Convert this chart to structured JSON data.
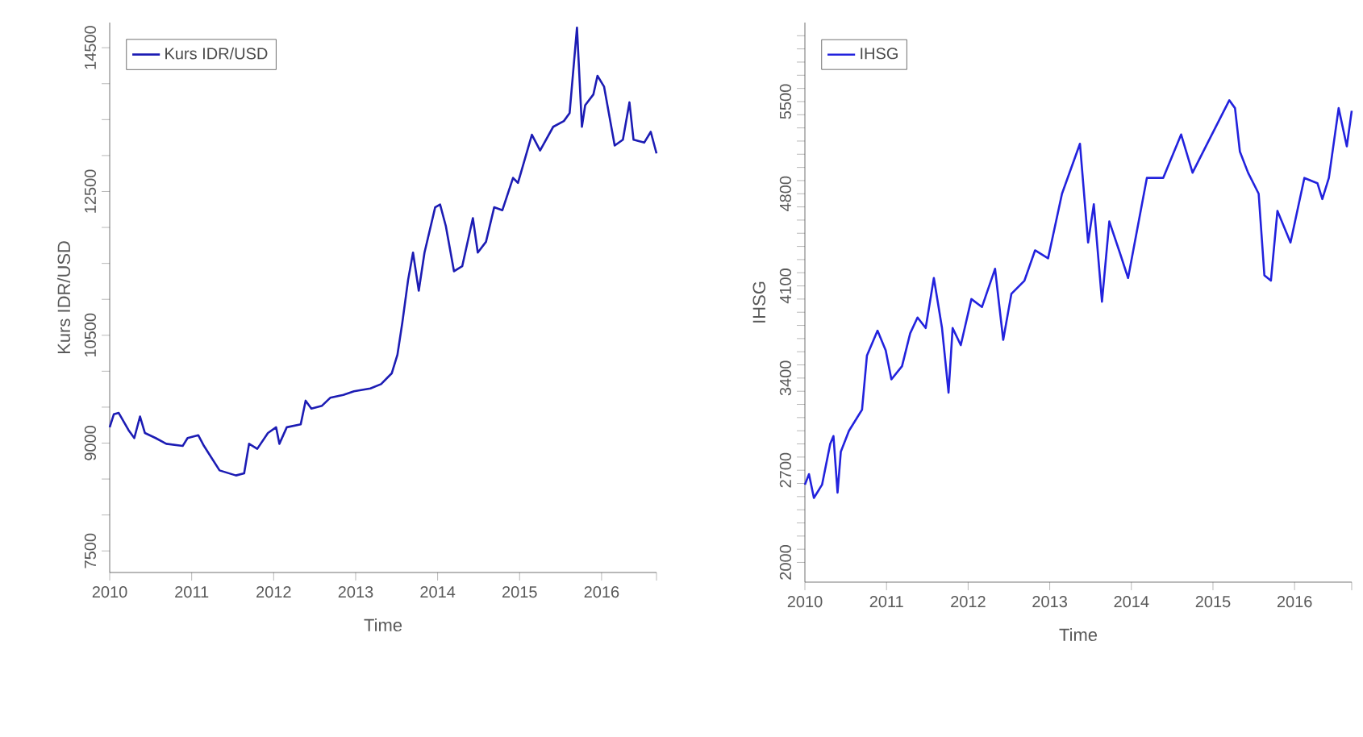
{
  "chart_data": [
    {
      "type": "line",
      "xlabel": "Time",
      "ylabel": "Kurs IDR/USD",
      "legend": "top left",
      "x": [
        2010.0,
        2010.05,
        2010.11,
        2010.23,
        2010.3,
        2010.37,
        2010.43,
        2010.56,
        2010.69,
        2010.89,
        2010.95,
        2011.08,
        2011.15,
        2011.34,
        2011.54,
        2011.64,
        2011.7,
        2011.8,
        2011.93,
        2012.03,
        2012.07,
        2012.16,
        2012.33,
        2012.39,
        2012.46,
        2012.59,
        2012.69,
        2012.85,
        2012.98,
        2013.18,
        2013.31,
        2013.44,
        2013.51,
        2013.57,
        2013.64,
        2013.7,
        2013.77,
        2013.84,
        2013.97,
        2014.03,
        2014.1,
        2014.2,
        2014.3,
        2014.43,
        2014.49,
        2014.59,
        2014.69,
        2014.79,
        2014.92,
        2014.98,
        2015.15,
        2015.25,
        2015.41,
        2015.54,
        2015.61,
        2015.7,
        2015.76,
        2015.8,
        2015.9,
        2015.95,
        2016.03,
        2016.16,
        2016.26,
        2016.34,
        2016.39,
        2016.52,
        2016.6,
        2016.67
      ],
      "series": [
        {
          "name": "Kurs IDR/USD",
          "color": "#1c1cb4",
          "values": [
            9220,
            9400,
            9420,
            9180,
            9070,
            9370,
            9140,
            9070,
            8990,
            8960,
            9070,
            9110,
            8960,
            8620,
            8550,
            8580,
            8990,
            8920,
            9140,
            9220,
            8990,
            9220,
            9260,
            9590,
            9480,
            9520,
            9630,
            9670,
            9720,
            9760,
            9820,
            9970,
            10230,
            10680,
            11270,
            11650,
            11120,
            11650,
            12280,
            12320,
            12020,
            11390,
            11460,
            12130,
            11650,
            11800,
            12280,
            12240,
            12690,
            12620,
            13290,
            13070,
            13400,
            13480,
            13590,
            14780,
            13400,
            13700,
            13850,
            14110,
            13960,
            13140,
            13220,
            13740,
            13220,
            13180,
            13330,
            13030
          ]
        }
      ],
      "xlim": [
        2010,
        2016.67
      ],
      "xticks": [
        2010,
        2011,
        2012,
        2013,
        2014,
        2015,
        2016,
        {
          "value": 2016.67,
          "label": null
        }
      ],
      "ylim": [
        7200,
        14850
      ],
      "yticks": [
        7500,
        {
          "value": 8000,
          "label": null
        },
        {
          "value": 8500,
          "label": null
        },
        9000,
        {
          "value": 9500,
          "label": null
        },
        {
          "value": 10000,
          "label": null
        },
        10500,
        {
          "value": 11000,
          "label": null
        },
        {
          "value": 11500,
          "label": null
        },
        {
          "value": 12000,
          "label": null
        },
        12500,
        {
          "value": 13000,
          "label": null
        },
        {
          "value": 13500,
          "label": null
        },
        {
          "value": 14000,
          "label": null
        },
        14500
      ]
    },
    {
      "type": "line",
      "xlabel": "Time",
      "ylabel": "IHSG",
      "legend": "top left",
      "x": [
        2010.0,
        2010.05,
        2010.11,
        2010.21,
        2010.31,
        2010.35,
        2010.4,
        2010.44,
        2010.54,
        2010.7,
        2010.76,
        2010.89,
        2010.99,
        2011.06,
        2011.19,
        2011.29,
        2011.38,
        2011.48,
        2011.58,
        2011.68,
        2011.76,
        2011.81,
        2011.91,
        2012.04,
        2012.17,
        2012.33,
        2012.43,
        2012.53,
        2012.69,
        2012.82,
        2012.98,
        2013.15,
        2013.37,
        2013.47,
        2013.54,
        2013.64,
        2013.73,
        2013.86,
        2013.96,
        2014.19,
        2014.39,
        2014.61,
        2014.75,
        2014.97,
        2015.2,
        2015.27,
        2015.33,
        2015.43,
        2015.56,
        2015.63,
        2015.71,
        2015.79,
        2015.95,
        2016.12,
        2016.28,
        2016.34,
        2016.42,
        2016.54,
        2016.64,
        2016.7
      ],
      "series": [
        {
          "name": "IHSG",
          "color": "#2222dd",
          "values": [
            2590,
            2670,
            2490,
            2590,
            2900,
            2960,
            2530,
            2840,
            3000,
            3160,
            3570,
            3760,
            3610,
            3390,
            3490,
            3740,
            3860,
            3780,
            4160,
            3780,
            3290,
            3780,
            3650,
            4000,
            3940,
            4230,
            3690,
            4040,
            4140,
            4370,
            4310,
            4800,
            5180,
            4430,
            4720,
            3980,
            4590,
            4350,
            4160,
            4920,
            4920,
            5250,
            4960,
            5230,
            5510,
            5450,
            5120,
            4960,
            4800,
            4180,
            4140,
            4670,
            4430,
            4920,
            4880,
            4760,
            4920,
            5450,
            5160,
            5430
          ]
        }
      ],
      "xlim": [
        2010,
        2016.7
      ],
      "xticks": [
        2010,
        2011,
        2012,
        2013,
        2014,
        2015,
        2016,
        {
          "value": 2016.7,
          "label": null
        }
      ],
      "ylim": [
        1850,
        6100
      ],
      "yticks": [
        2000,
        {
          "value": 2100,
          "label": null
        },
        {
          "value": 2200,
          "label": null
        },
        {
          "value": 2300,
          "label": null
        },
        {
          "value": 2400,
          "label": null
        },
        {
          "value": 2500,
          "label": null
        },
        {
          "value": 2600,
          "label": null
        },
        2700,
        {
          "value": 2800,
          "label": null
        },
        {
          "value": 2900,
          "label": null
        },
        {
          "value": 3000,
          "label": null
        },
        {
          "value": 3100,
          "label": null
        },
        {
          "value": 3200,
          "label": null
        },
        {
          "value": 3300,
          "label": null
        },
        3400,
        {
          "value": 3500,
          "label": null
        },
        {
          "value": 3600,
          "label": null
        },
        {
          "value": 3700,
          "label": null
        },
        {
          "value": 3800,
          "label": null
        },
        {
          "value": 3900,
          "label": null
        },
        {
          "value": 4000,
          "label": null
        },
        4100,
        {
          "value": 4200,
          "label": null
        },
        {
          "value": 4300,
          "label": null
        },
        {
          "value": 4400,
          "label": null
        },
        {
          "value": 4500,
          "label": null
        },
        {
          "value": 4600,
          "label": null
        },
        {
          "value": 4700,
          "label": null
        },
        4800,
        {
          "value": 4900,
          "label": null
        },
        {
          "value": 5000,
          "label": null
        },
        {
          "value": 5100,
          "label": null
        },
        {
          "value": 5200,
          "label": null
        },
        {
          "value": 5300,
          "label": null
        },
        {
          "value": 5400,
          "label": null
        },
        5500,
        {
          "value": 5600,
          "label": null
        },
        {
          "value": 5700,
          "label": null
        },
        {
          "value": 5800,
          "label": null
        },
        {
          "value": 5900,
          "label": null
        },
        {
          "value": 6000,
          "label": null
        }
      ]
    }
  ]
}
